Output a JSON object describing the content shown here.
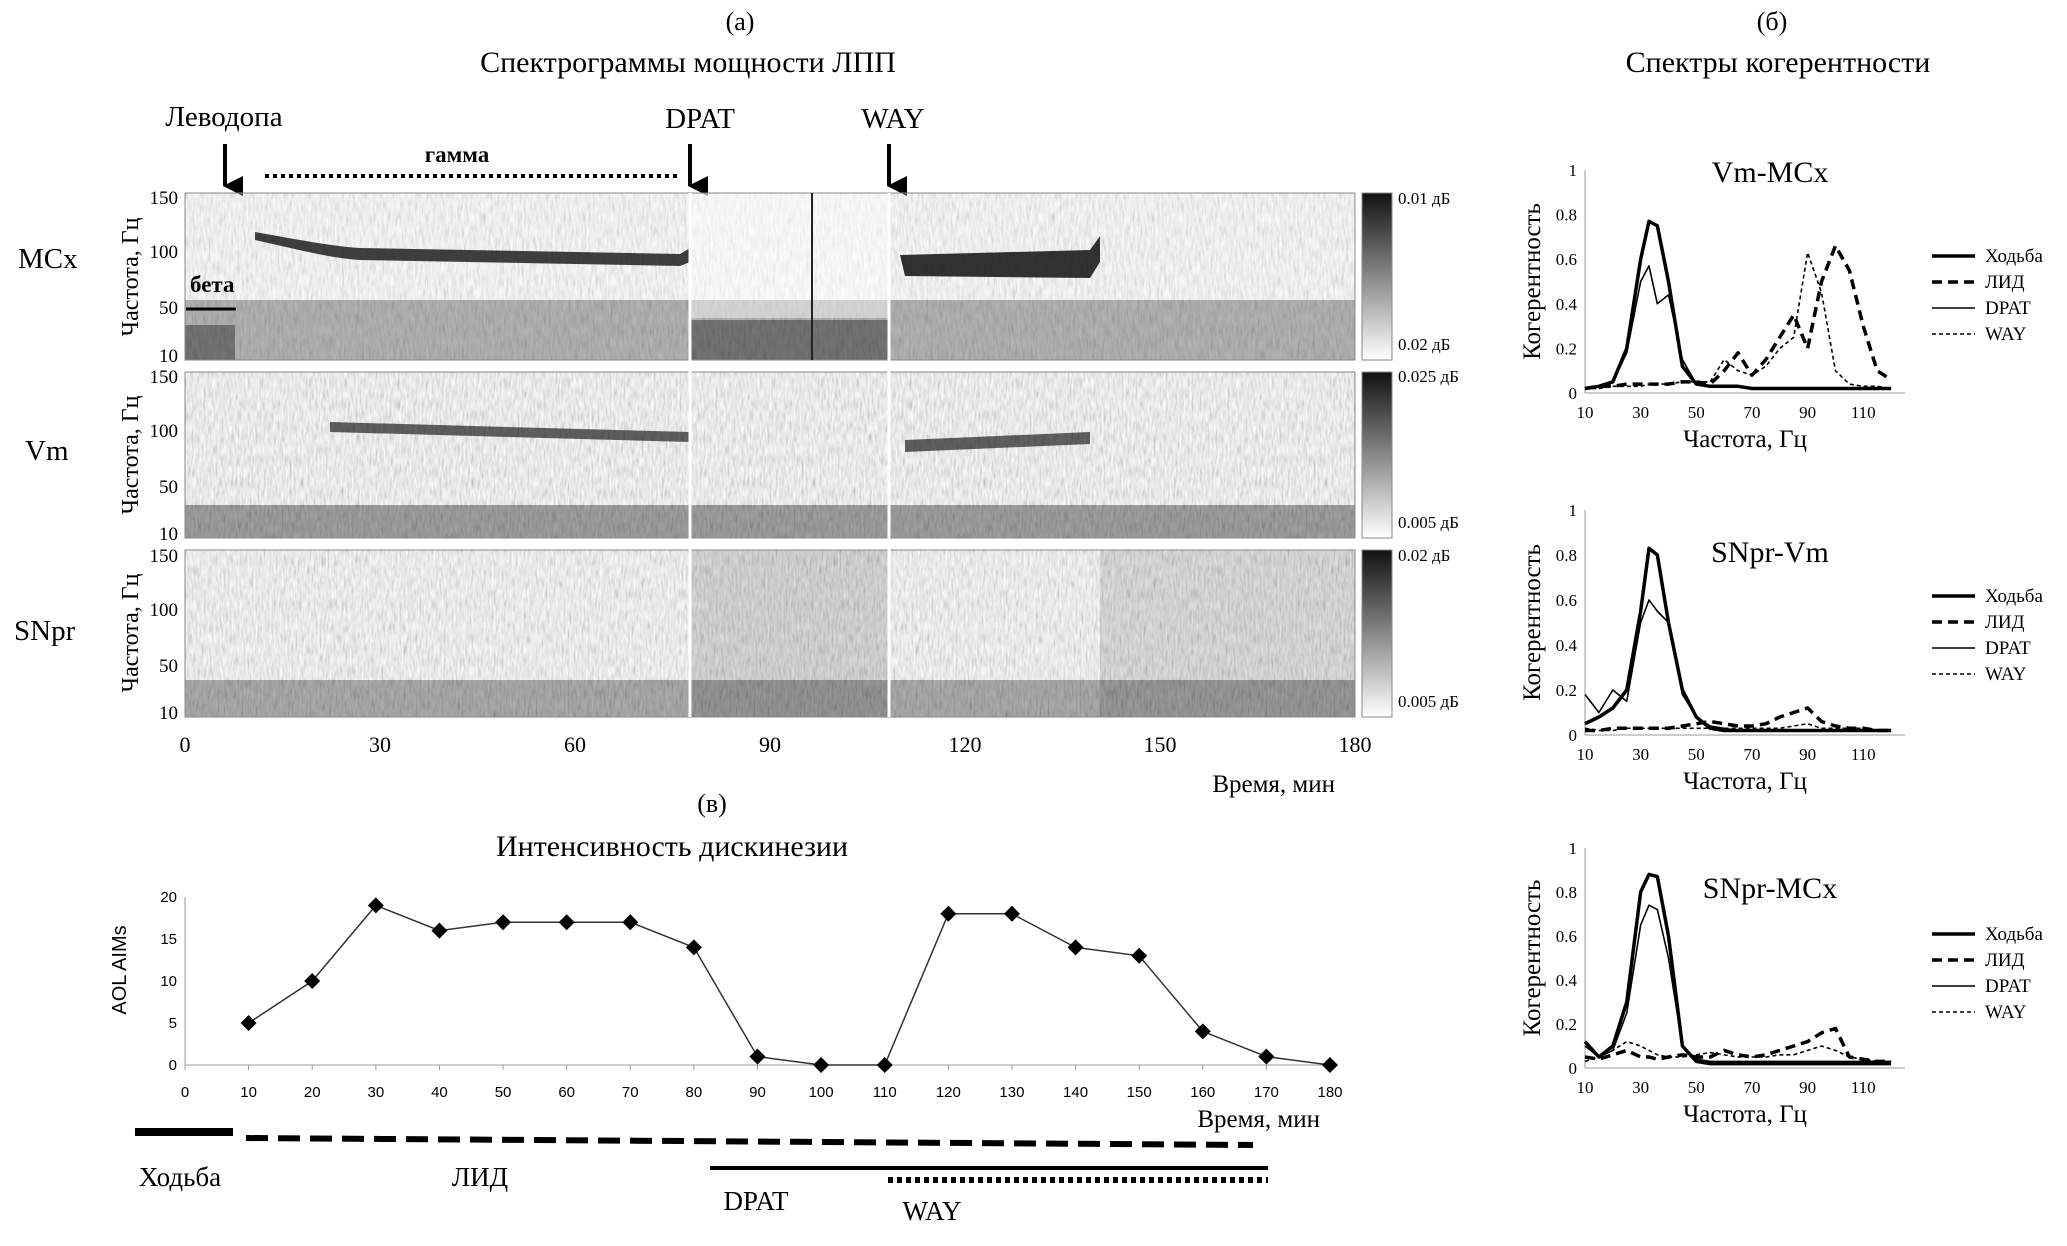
{
  "panel_a": {
    "label": "(а)",
    "title": "Спектрограммы мощности ЛПП",
    "events": {
      "levodopa": "Леводопа",
      "dpat": "DPAT",
      "way": "WAY",
      "gamma": "гамма",
      "beta": "бета"
    },
    "ylabel": "Частота, Гц",
    "xlabel": "Время, мин",
    "yticks": [
      "150",
      "100",
      "50",
      "10"
    ],
    "xticks": [
      "0",
      "30",
      "60",
      "90",
      "120",
      "150",
      "180"
    ],
    "rows": [
      {
        "name": "MCx",
        "cmax": "0.01 дБ",
        "cmin": "0.02 дБ"
      },
      {
        "name": "Vm",
        "cmax": "0.025 дБ",
        "cmin": "0.005 дБ"
      },
      {
        "name": "SNpr",
        "cmax": "0.02 дБ",
        "cmin": "0.005 дБ"
      }
    ]
  },
  "panel_b": {
    "label": "(б)",
    "title": "Спектры когерентности",
    "ylabel": "Когерентность",
    "xlabel": "Частота, Гц",
    "yticks": [
      "1",
      "0.8",
      "0.6",
      "0.4",
      "0.2",
      "0"
    ],
    "xticks": [
      "10",
      "30",
      "50",
      "70",
      "90",
      "110"
    ],
    "legend": [
      "Ходьба",
      "ЛИД",
      "DPAT",
      "WAY"
    ],
    "plots": [
      {
        "title": "Vm-MCx"
      },
      {
        "title": "SNpr-Vm"
      },
      {
        "title": "SNpr-MCx"
      }
    ]
  },
  "panel_c": {
    "label": "(в)",
    "title": "Интенсивность дискинезии",
    "ylabel": "AOL AIMs",
    "xlabel": "Время, мин",
    "yticks": [
      "20",
      "15",
      "10",
      "5",
      "0"
    ],
    "xticks": [
      "0",
      "10",
      "20",
      "30",
      "40",
      "50",
      "60",
      "70",
      "80",
      "90",
      "100",
      "110",
      "120",
      "130",
      "140",
      "150",
      "160",
      "170",
      "180"
    ],
    "phases": {
      "walk": "Ходьба",
      "lid": "ЛИД",
      "dpat": "DPAT",
      "way": "WAY"
    }
  },
  "chart_data": [
    {
      "type": "line",
      "title": "Интенсивность дискинезии",
      "xlabel": "Время, мин",
      "ylabel": "AOL AIMs",
      "x": [
        10,
        20,
        30,
        40,
        50,
        60,
        70,
        80,
        90,
        100,
        110,
        120,
        130,
        140,
        150,
        160,
        170,
        180
      ],
      "values": [
        5,
        10,
        19,
        16,
        17,
        17,
        17,
        14,
        1,
        0,
        0,
        18,
        18,
        14,
        13,
        4,
        1,
        0
      ],
      "xlim": [
        0,
        180
      ],
      "ylim": [
        0,
        20
      ]
    },
    {
      "type": "line",
      "title": "Vm-MCx",
      "xlabel": "Частота, Гц",
      "ylabel": "Когерентность",
      "x": [
        10,
        15,
        20,
        25,
        30,
        33,
        36,
        40,
        45,
        50,
        55,
        60,
        65,
        70,
        75,
        80,
        85,
        90,
        95,
        100,
        105,
        110,
        115,
        120
      ],
      "series": [
        {
          "name": "Ходьба",
          "values": [
            0.02,
            0.03,
            0.05,
            0.2,
            0.6,
            0.77,
            0.75,
            0.5,
            0.12,
            0.04,
            0.03,
            0.03,
            0.03,
            0.02,
            0.02,
            0.02,
            0.02,
            0.02,
            0.02,
            0.02,
            0.02,
            0.02,
            0.02,
            0.02
          ]
        },
        {
          "name": "ЛИД",
          "values": [
            0.02,
            0.03,
            0.03,
            0.04,
            0.04,
            0.04,
            0.04,
            0.04,
            0.05,
            0.05,
            0.04,
            0.1,
            0.18,
            0.08,
            0.15,
            0.25,
            0.35,
            0.2,
            0.5,
            0.66,
            0.55,
            0.3,
            0.1,
            0.06
          ]
        },
        {
          "name": "DPAT",
          "values": [
            0.02,
            0.03,
            0.05,
            0.18,
            0.5,
            0.57,
            0.4,
            0.44,
            0.15,
            0.04,
            0.03,
            0.03,
            0.03,
            0.02,
            0.02,
            0.02,
            0.02,
            0.02,
            0.02,
            0.02,
            0.02,
            0.02,
            0.02,
            0.02
          ]
        },
        {
          "name": "WAY",
          "values": [
            0.02,
            0.02,
            0.03,
            0.03,
            0.03,
            0.04,
            0.04,
            0.04,
            0.05,
            0.05,
            0.05,
            0.15,
            0.1,
            0.08,
            0.12,
            0.2,
            0.25,
            0.63,
            0.45,
            0.1,
            0.04,
            0.03,
            0.03,
            0.02
          ]
        }
      ],
      "xlim": [
        10,
        125
      ],
      "ylim": [
        0,
        1
      ]
    },
    {
      "type": "line",
      "title": "SNpr-Vm",
      "xlabel": "Частота, Гц",
      "ylabel": "Когерентность",
      "x": [
        10,
        15,
        20,
        25,
        30,
        33,
        36,
        40,
        45,
        50,
        55,
        60,
        65,
        70,
        75,
        80,
        85,
        90,
        95,
        100,
        105,
        110,
        115,
        120
      ],
      "series": [
        {
          "name": "Ходьба",
          "values": [
            0.05,
            0.08,
            0.12,
            0.2,
            0.55,
            0.83,
            0.8,
            0.5,
            0.2,
            0.08,
            0.03,
            0.02,
            0.02,
            0.02,
            0.02,
            0.02,
            0.02,
            0.02,
            0.02,
            0.02,
            0.02,
            0.02,
            0.02,
            0.02
          ]
        },
        {
          "name": "ЛИД",
          "values": [
            0.02,
            0.02,
            0.03,
            0.03,
            0.03,
            0.03,
            0.03,
            0.03,
            0.04,
            0.05,
            0.06,
            0.05,
            0.04,
            0.04,
            0.05,
            0.08,
            0.1,
            0.12,
            0.06,
            0.04,
            0.03,
            0.03,
            0.02,
            0.02
          ]
        },
        {
          "name": "DPAT",
          "values": [
            0.18,
            0.1,
            0.2,
            0.15,
            0.5,
            0.6,
            0.55,
            0.5,
            0.18,
            0.08,
            0.04,
            0.03,
            0.02,
            0.02,
            0.02,
            0.02,
            0.02,
            0.02,
            0.02,
            0.02,
            0.02,
            0.02,
            0.02,
            0.02
          ]
        },
        {
          "name": "WAY",
          "values": [
            0.03,
            0.02,
            0.02,
            0.03,
            0.03,
            0.03,
            0.03,
            0.03,
            0.03,
            0.03,
            0.03,
            0.03,
            0.03,
            0.03,
            0.03,
            0.03,
            0.04,
            0.05,
            0.03,
            0.03,
            0.03,
            0.03,
            0.02,
            0.02
          ]
        }
      ],
      "xlim": [
        10,
        125
      ],
      "ylim": [
        0,
        1
      ]
    },
    {
      "type": "line",
      "title": "SNpr-MCx",
      "xlabel": "Частота, Гц",
      "ylabel": "Когерентность",
      "x": [
        10,
        15,
        20,
        25,
        30,
        33,
        36,
        40,
        45,
        50,
        55,
        60,
        65,
        70,
        75,
        80,
        85,
        90,
        95,
        100,
        105,
        110,
        115,
        120
      ],
      "series": [
        {
          "name": "Ходьба",
          "values": [
            0.12,
            0.05,
            0.1,
            0.3,
            0.8,
            0.88,
            0.87,
            0.6,
            0.1,
            0.03,
            0.02,
            0.02,
            0.02,
            0.02,
            0.02,
            0.02,
            0.02,
            0.02,
            0.02,
            0.02,
            0.02,
            0.02,
            0.02,
            0.02
          ]
        },
        {
          "name": "ЛИД",
          "values": [
            0.05,
            0.04,
            0.06,
            0.08,
            0.05,
            0.05,
            0.04,
            0.05,
            0.06,
            0.05,
            0.05,
            0.08,
            0.06,
            0.05,
            0.06,
            0.08,
            0.1,
            0.12,
            0.16,
            0.18,
            0.05,
            0.04,
            0.03,
            0.03
          ]
        },
        {
          "name": "DPAT",
          "values": [
            0.1,
            0.05,
            0.08,
            0.25,
            0.65,
            0.74,
            0.72,
            0.5,
            0.1,
            0.04,
            0.03,
            0.03,
            0.03,
            0.03,
            0.03,
            0.03,
            0.03,
            0.03,
            0.03,
            0.03,
            0.03,
            0.03,
            0.03,
            0.03
          ]
        },
        {
          "name": "WAY",
          "values": [
            0.03,
            0.05,
            0.08,
            0.12,
            0.1,
            0.08,
            0.06,
            0.05,
            0.05,
            0.06,
            0.07,
            0.06,
            0.05,
            0.05,
            0.05,
            0.06,
            0.06,
            0.08,
            0.1,
            0.08,
            0.05,
            0.04,
            0.03,
            0.03
          ]
        }
      ],
      "xlim": [
        10,
        125
      ],
      "ylim": [
        0,
        1
      ]
    }
  ]
}
